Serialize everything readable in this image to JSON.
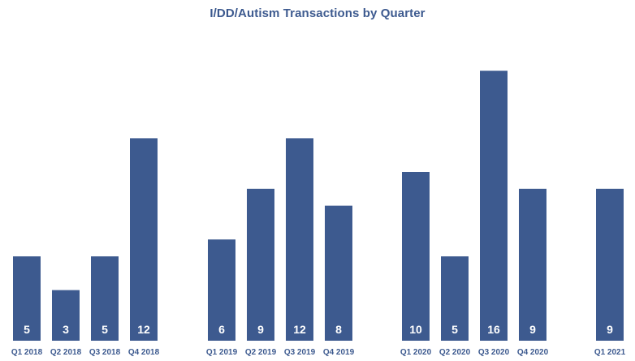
{
  "chart_data": {
    "type": "bar",
    "title": "I/DD/Autism Transactions by Quarter",
    "xlabel": "",
    "ylabel": "",
    "ylim": [
      0,
      16
    ],
    "grid": false,
    "legend": "none",
    "bar_color": "#3d5a8f",
    "categories": [
      "Q1 2018",
      "Q2 2018",
      "Q3 2018",
      "Q4 2018",
      "Q1 2019",
      "Q2 2019",
      "Q3 2019",
      "Q4 2019",
      "Q1 2020",
      "Q2 2020",
      "Q3 2020",
      "Q4 2020",
      "Q1 2021"
    ],
    "values": [
      5,
      3,
      5,
      12,
      6,
      9,
      12,
      8,
      10,
      5,
      16,
      9,
      9
    ]
  }
}
